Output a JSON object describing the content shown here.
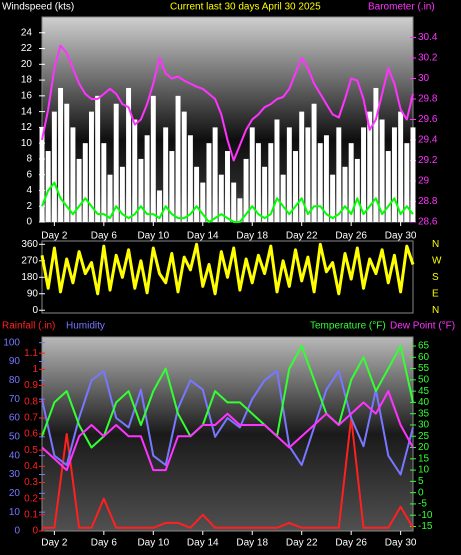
{
  "chart_data": [
    {
      "type": "combo",
      "title": "Current last 30 days April 30 2025",
      "y_label": "Windspeed (kts)",
      "y2_label": "Barometer (.in)",
      "title_color": "#ffff00",
      "x": [
        1,
        1.5,
        2,
        2.5,
        3,
        3.5,
        4,
        4.5,
        5,
        5.5,
        6,
        6.5,
        7,
        7.5,
        8,
        8.5,
        9,
        9.5,
        10,
        10.5,
        11,
        11.5,
        12,
        12.5,
        13,
        13.5,
        14,
        14.5,
        15,
        15.5,
        16,
        16.5,
        17,
        17.5,
        18,
        18.5,
        19,
        19.5,
        20,
        20.5,
        21,
        21.5,
        22,
        22.5,
        23,
        23.5,
        24,
        24.5,
        25,
        25.5,
        26,
        26.5,
        27,
        27.5,
        28,
        28.5,
        29,
        29.5,
        30,
        30.5,
        31
      ],
      "xlim": [
        1,
        31
      ],
      "xticks": [
        {
          "value": 2,
          "label": "Day 2"
        },
        {
          "value": 6,
          "label": "Day 6"
        },
        {
          "value": 10,
          "label": "Day 10"
        },
        {
          "value": 14,
          "label": "Day 14"
        },
        {
          "value": 18,
          "label": "Day 18"
        },
        {
          "value": 22,
          "label": "Day 22"
        },
        {
          "value": 26,
          "label": "Day 26"
        },
        {
          "value": 30,
          "label": "Day 30"
        }
      ],
      "ylim": [
        0,
        26
      ],
      "yticks": [
        0,
        2,
        4,
        6,
        8,
        10,
        12,
        14,
        16,
        18,
        20,
        22,
        24
      ],
      "y2lim": [
        28.6,
        30.6
      ],
      "y2ticks": [
        28.6,
        28.8,
        29,
        29.2,
        29.4,
        29.6,
        29.8,
        30,
        30.2,
        30.4
      ],
      "series": [
        {
          "type": "bar",
          "color": "#ffffff",
          "values": [
            12,
            9,
            14,
            17,
            15,
            12,
            8,
            10,
            14,
            16,
            10,
            6,
            15,
            7,
            17,
            13,
            8,
            11,
            16,
            4,
            12,
            9,
            16,
            14,
            11,
            7,
            5,
            10,
            12,
            6,
            9,
            5,
            3,
            8,
            12,
            10,
            7,
            10,
            13,
            6,
            12,
            9,
            14,
            12,
            15,
            10,
            11,
            6,
            12,
            7,
            10,
            8,
            12,
            14,
            17,
            13,
            9,
            12,
            14,
            10,
            12
          ]
        },
        {
          "type": "line",
          "color": "#00ff00",
          "values": [
            2,
            4,
            5,
            3,
            2,
            1,
            2,
            3,
            2,
            1,
            1,
            0.5,
            2,
            1,
            0.5,
            1,
            2,
            1,
            1,
            0.5,
            2,
            1,
            0.5,
            0.5,
            1,
            2,
            1,
            0,
            0.5,
            1,
            0.5,
            0,
            0,
            1,
            2,
            1,
            0.5,
            1,
            3,
            2,
            1,
            2,
            3,
            1,
            2,
            2,
            1,
            0.5,
            1,
            2,
            1,
            3,
            1,
            2,
            3,
            1,
            2,
            3,
            1,
            2,
            1
          ]
        },
        {
          "type": "line",
          "color": "#ff33ff",
          "axis": "y2",
          "values": [
            29.4,
            29.7,
            30.1,
            30.32,
            30.25,
            30.1,
            29.95,
            29.85,
            29.8,
            29.8,
            29.85,
            29.9,
            29.85,
            29.75,
            29.72,
            29.55,
            29.6,
            29.75,
            29.95,
            30.2,
            30.05,
            30.0,
            30.02,
            29.98,
            29.95,
            29.92,
            29.9,
            29.85,
            29.8,
            29.65,
            29.4,
            29.2,
            29.35,
            29.5,
            29.6,
            29.65,
            29.72,
            29.75,
            29.8,
            29.82,
            29.9,
            30.05,
            30.2,
            30.1,
            29.95,
            29.85,
            29.75,
            29.65,
            29.62,
            29.8,
            30.0,
            29.98,
            29.8,
            29.5,
            29.6,
            29.85,
            30.1,
            29.95,
            29.7,
            29.6,
            29.85
          ]
        }
      ]
    },
    {
      "type": "line",
      "x": [
        1,
        1.5,
        2,
        2.5,
        3,
        3.5,
        4,
        4.5,
        5,
        5.5,
        6,
        6.5,
        7,
        7.5,
        8,
        8.5,
        9,
        9.5,
        10,
        10.5,
        11,
        11.5,
        12,
        12.5,
        13,
        13.5,
        14,
        14.5,
        15,
        15.5,
        16,
        16.5,
        17,
        17.5,
        18,
        18.5,
        19,
        19.5,
        20,
        20.5,
        21,
        21.5,
        22,
        22.5,
        23,
        23.5,
        24,
        24.5,
        25,
        25.5,
        26,
        26.5,
        27,
        27.5,
        28,
        28.5,
        29,
        29.5,
        30,
        30.5,
        31
      ],
      "xlim": [
        1,
        31
      ],
      "ylim": [
        -15,
        378
      ],
      "yticks": [
        360,
        270,
        180,
        90,
        0
      ],
      "compass_labels": [
        "N",
        "W",
        "S",
        "E",
        "N"
      ],
      "series": [
        {
          "color": "#ffff00",
          "values": [
            300,
            120,
            340,
            100,
            280,
            150,
            320,
            200,
            260,
            90,
            350,
            110,
            300,
            180,
            330,
            120,
            270,
            95,
            340,
            200,
            150,
            310,
            100,
            290,
            220,
            360,
            130,
            250,
            90,
            320,
            180,
            340,
            110,
            280,
            150,
            300,
            200,
            350,
            100,
            270,
            130,
            330,
            160,
            290,
            100,
            360,
            210,
            260,
            90,
            310,
            170,
            340,
            120,
            280,
            200,
            330,
            150,
            300,
            100,
            350,
            250
          ]
        }
      ]
    },
    {
      "type": "combo",
      "x": [
        1,
        2,
        3,
        4,
        5,
        6,
        7,
        8,
        9,
        10,
        11,
        12,
        13,
        14,
        15,
        16,
        17,
        18,
        19,
        20,
        21,
        22,
        23,
        24,
        25,
        26,
        27,
        28,
        29,
        30,
        31
      ],
      "xlim": [
        1,
        31
      ],
      "xticks": [
        {
          "value": 2,
          "label": "Day 2"
        },
        {
          "value": 6,
          "label": "Day 6"
        },
        {
          "value": 10,
          "label": "Day 10"
        },
        {
          "value": 14,
          "label": "Day 14"
        },
        {
          "value": 18,
          "label": "Day 18"
        },
        {
          "value": 22,
          "label": "Day 22"
        },
        {
          "value": 26,
          "label": "Day 26"
        },
        {
          "value": 30,
          "label": "Day 30"
        }
      ],
      "ylim": [
        0,
        103
      ],
      "yticks": [
        0,
        10,
        20,
        30,
        40,
        50,
        60,
        70,
        80,
        90,
        100
      ],
      "y2lim": [
        -17,
        69
      ],
      "y2ticks": [
        -15,
        -10,
        -5,
        0,
        5,
        10,
        15,
        20,
        25,
        30,
        35,
        40,
        45,
        50,
        55,
        60,
        65
      ],
      "y3lim": [
        0,
        1.2
      ],
      "y3ticks": [
        0,
        0.1,
        0.2,
        0.3,
        0.4,
        0.5,
        0.6,
        0.7,
        0.8,
        0.9,
        1,
        1.1
      ],
      "series": [
        {
          "name": "Rainfall (.in)",
          "color": "#ff2020",
          "axis": "y3",
          "type": "line",
          "values": [
            0.02,
            0.02,
            0.6,
            0.02,
            0.02,
            0.2,
            0.02,
            0.02,
            0.02,
            0.02,
            0.05,
            0.05,
            0.02,
            0.1,
            0.02,
            0.02,
            0.02,
            0.02,
            0.02,
            0.02,
            0.05,
            0.02,
            0.02,
            0.02,
            0.02,
            0.7,
            0.02,
            0.02,
            0.02,
            0.15,
            0.02
          ]
        },
        {
          "name": "Humidity",
          "color": "#7777ff",
          "type": "line",
          "values": [
            70,
            40,
            35,
            60,
            80,
            85,
            60,
            55,
            75,
            40,
            35,
            65,
            80,
            75,
            50,
            60,
            55,
            70,
            80,
            85,
            45,
            35,
            55,
            75,
            85,
            60,
            45,
            75,
            40,
            30,
            55
          ]
        },
        {
          "name": "Temperature (°F)",
          "color": "#33ff33",
          "axis": "y2",
          "type": "line",
          "values": [
            25,
            40,
            45,
            30,
            20,
            25,
            40,
            45,
            30,
            45,
            55,
            35,
            25,
            30,
            45,
            40,
            40,
            35,
            30,
            25,
            55,
            65,
            50,
            35,
            30,
            50,
            60,
            45,
            55,
            65,
            40
          ]
        },
        {
          "name": "Dew Point (°F)",
          "color": "#ff33ff",
          "axis": "y2",
          "type": "line",
          "values": [
            20,
            15,
            10,
            25,
            30,
            25,
            30,
            25,
            25,
            10,
            10,
            25,
            25,
            30,
            30,
            35,
            30,
            30,
            30,
            25,
            20,
            25,
            30,
            35,
            30,
            35,
            40,
            35,
            45,
            30,
            20
          ]
        }
      ]
    }
  ]
}
